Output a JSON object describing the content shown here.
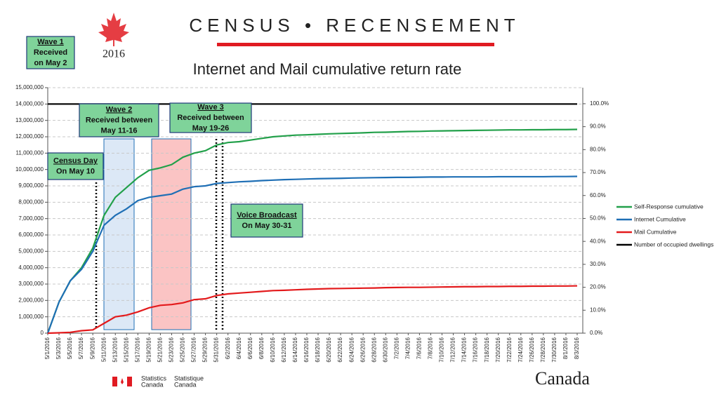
{
  "header": {
    "wordmark": "CENSUS • RECENSEMENT",
    "year": "2016"
  },
  "footer": {
    "agency_en": "Statistics",
    "agency_en2": "Canada",
    "agency_fr": "Statistique",
    "agency_fr2": "Canada",
    "wordmark": "Canada"
  },
  "chart_data": {
    "type": "line",
    "title": "Internet and Mail cumulative return rate",
    "categories": [
      "5/1/2016",
      "5/3/2016",
      "5/5/2016",
      "5/7/2016",
      "5/9/2016",
      "5/11/2016",
      "5/13/2016",
      "5/15/2016",
      "5/17/2016",
      "5/19/2016",
      "5/21/2016",
      "5/23/2016",
      "5/25/2016",
      "5/27/2016",
      "5/29/2016",
      "5/31/2016",
      "6/2/2016",
      "6/4/2016",
      "6/6/2016",
      "6/8/2016",
      "6/10/2016",
      "6/12/2016",
      "6/14/2016",
      "6/16/2016",
      "6/18/2016",
      "6/20/2016",
      "6/22/2016",
      "6/24/2016",
      "6/26/2016",
      "6/28/2016",
      "6/30/2016",
      "7/2/2016",
      "7/4/2016",
      "7/6/2016",
      "7/8/2016",
      "7/10/2016",
      "7/12/2016",
      "7/14/2016",
      "7/16/2016",
      "7/18/2016",
      "7/20/2016",
      "7/22/2016",
      "7/24/2016",
      "7/26/2016",
      "7/28/2016",
      "7/30/2016",
      "8/1/2016",
      "8/3/2016"
    ],
    "series": [
      {
        "name": "Self-Response cumulative",
        "color": "#22a04a",
        "values": [
          0,
          1900000,
          3200000,
          4000000,
          5200000,
          7200000,
          8300000,
          8900000,
          9500000,
          9950000,
          10100000,
          10300000,
          10750000,
          11000000,
          11150000,
          11500000,
          11650000,
          11700000,
          11800000,
          11900000,
          12000000,
          12050000,
          12100000,
          12120000,
          12150000,
          12180000,
          12200000,
          12220000,
          12240000,
          12270000,
          12280000,
          12300000,
          12320000,
          12330000,
          12350000,
          12360000,
          12370000,
          12380000,
          12390000,
          12400000,
          12410000,
          12420000,
          12420000,
          12430000,
          12430000,
          12440000,
          12440000,
          12450000
        ]
      },
      {
        "name": "Internet Cumulative",
        "color": "#1f6fb5",
        "values": [
          0,
          1900000,
          3200000,
          3900000,
          5000000,
          6600000,
          7200000,
          7600000,
          8100000,
          8300000,
          8400000,
          8500000,
          8800000,
          8950000,
          9000000,
          9150000,
          9200000,
          9250000,
          9280000,
          9320000,
          9350000,
          9380000,
          9400000,
          9420000,
          9440000,
          9450000,
          9460000,
          9480000,
          9490000,
          9500000,
          9510000,
          9520000,
          9520000,
          9530000,
          9540000,
          9540000,
          9550000,
          9550000,
          9550000,
          9550000,
          9560000,
          9560000,
          9560000,
          9560000,
          9560000,
          9570000,
          9570000,
          9580000
        ]
      },
      {
        "name": "Mail Cumulative",
        "color": "#e31a1c",
        "values": [
          0,
          20000,
          50000,
          150000,
          200000,
          600000,
          1000000,
          1100000,
          1300000,
          1550000,
          1700000,
          1750000,
          1850000,
          2050000,
          2100000,
          2300000,
          2400000,
          2450000,
          2500000,
          2550000,
          2600000,
          2620000,
          2650000,
          2680000,
          2700000,
          2720000,
          2730000,
          2740000,
          2750000,
          2760000,
          2780000,
          2790000,
          2800000,
          2800000,
          2810000,
          2820000,
          2830000,
          2840000,
          2840000,
          2850000,
          2850000,
          2860000,
          2860000,
          2870000,
          2870000,
          2880000,
          2880000,
          2890000
        ]
      },
      {
        "name": "Number of occupied dwellings",
        "color": "#000000",
        "values": [
          14000000,
          14000000,
          14000000,
          14000000,
          14000000,
          14000000,
          14000000,
          14000000,
          14000000,
          14000000,
          14000000,
          14000000,
          14000000,
          14000000,
          14000000,
          14000000,
          14000000,
          14000000,
          14000000,
          14000000,
          14000000,
          14000000,
          14000000,
          14000000,
          14000000,
          14000000,
          14000000,
          14000000,
          14000000,
          14000000,
          14000000,
          14000000,
          14000000,
          14000000,
          14000000,
          14000000,
          14000000,
          14000000,
          14000000,
          14000000,
          14000000,
          14000000,
          14000000,
          14000000,
          14000000,
          14000000,
          14000000,
          14000000
        ]
      }
    ],
    "ylim": [
      0,
      15000000
    ],
    "yticks": [
      {
        "value": 0,
        "label": "0"
      },
      {
        "value": 1000000,
        "label": "1,000,000"
      },
      {
        "value": 2000000,
        "label": "2,000,000"
      },
      {
        "value": 3000000,
        "label": "3,000,000"
      },
      {
        "value": 4000000,
        "label": "4,000,000"
      },
      {
        "value": 5000000,
        "label": "5,000,000"
      },
      {
        "value": 6000000,
        "label": "6,000,000"
      },
      {
        "value": 7000000,
        "label": "7,000,000"
      },
      {
        "value": 8000000,
        "label": "8,000,000"
      },
      {
        "value": 9000000,
        "label": "9,000,000"
      },
      {
        "value": 10000000,
        "label": "10,000,000"
      },
      {
        "value": 11000000,
        "label": "11,000,000"
      },
      {
        "value": 12000000,
        "label": "12,000,000"
      },
      {
        "value": 13000000,
        "label": "13,000,000"
      },
      {
        "value": 14000000,
        "label": "14,000,000"
      },
      {
        "value": 15000000,
        "label": "15,000,000"
      }
    ],
    "y2lim": [
      0,
      107
    ],
    "y2ticks": [
      {
        "value": 0,
        "label": "0.0%"
      },
      {
        "value": 10,
        "label": "10.0%"
      },
      {
        "value": 20,
        "label": "20.0%"
      },
      {
        "value": 30,
        "label": "30.0%"
      },
      {
        "value": 40,
        "label": "40.0%"
      },
      {
        "value": 50,
        "label": "50.0%"
      },
      {
        "value": 60,
        "label": "60.0%"
      },
      {
        "value": 70,
        "label": "70.0%"
      },
      {
        "value": 80,
        "label": "80.0%"
      },
      {
        "value": 90,
        "label": "90.0%"
      },
      {
        "value": 100,
        "label": "100.0%"
      }
    ],
    "grid": true,
    "legend": "right",
    "annotations": [
      {
        "title": "Wave 1",
        "lines": [
          "Received",
          "on May 2"
        ]
      },
      {
        "title": "Census Day",
        "lines": [
          "On May 10"
        ]
      },
      {
        "title": "Wave 2",
        "lines": [
          "Received between",
          "May 11-16"
        ]
      },
      {
        "title": "Wave 3",
        "lines": [
          "Received between",
          "May 19-26"
        ]
      },
      {
        "title": "Voice Broadcast",
        "lines": [
          "On May 30-31"
        ]
      }
    ]
  }
}
